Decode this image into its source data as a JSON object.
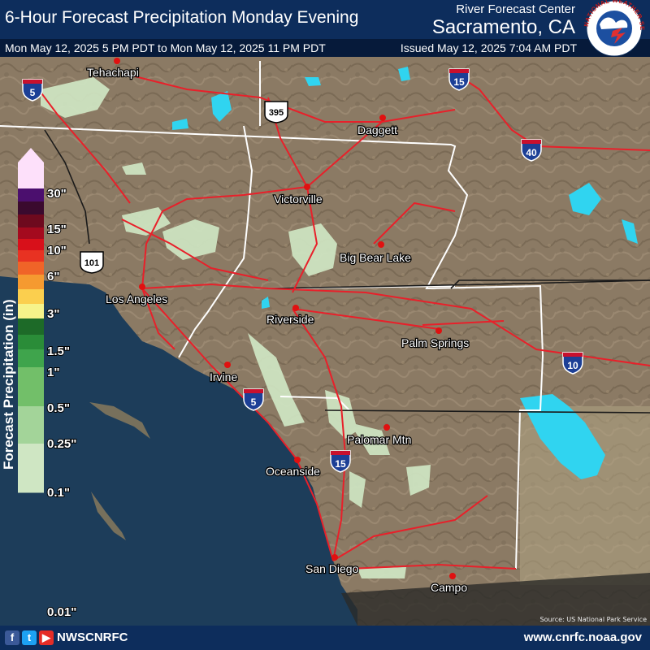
{
  "header": {
    "title": "6-Hour Forecast Precipitation Monday Evening",
    "rfc_label": "River Forecast Center",
    "rfc_city": "Sacramento, CA",
    "valid_time": "Mon May 12, 2025 5 PM PDT to Mon May 12, 2025 11 PM PDT",
    "issued_time": "Issued May 12, 2025 7:04 AM PDT",
    "logo_text": "NATIONAL WEATHER SERVICE"
  },
  "map": {
    "land_color": "#8c7b66",
    "water_color": "#1d3d5a",
    "lake_color": "#30d4f0",
    "road_color": "#e8202a",
    "light_precip_color": "#cfe6c3",
    "cities": [
      {
        "name": "Tehachapi"
      },
      {
        "name": "Daggett"
      },
      {
        "name": "Victorville"
      },
      {
        "name": "Big Bear Lake"
      },
      {
        "name": "Los Angeles"
      },
      {
        "name": "Riverside"
      },
      {
        "name": "Palm Springs"
      },
      {
        "name": "Irvine"
      },
      {
        "name": "Palomar Mtn"
      },
      {
        "name": "Oceanside"
      },
      {
        "name": "San Diego"
      },
      {
        "name": "Campo"
      }
    ],
    "shields": [
      {
        "type": "interstate",
        "number": "5"
      },
      {
        "type": "interstate",
        "number": "15"
      },
      {
        "type": "interstate",
        "number": "40"
      },
      {
        "type": "interstate",
        "number": "10"
      },
      {
        "type": "interstate",
        "number": "5"
      },
      {
        "type": "interstate",
        "number": "15"
      },
      {
        "type": "us",
        "number": "395"
      },
      {
        "type": "us",
        "number": "101"
      }
    ],
    "credit": "Source: US National Park Service"
  },
  "legend": {
    "title": "Forecast Precipitation (in)",
    "ticks": [
      "30\"",
      "15\"",
      "10\"",
      "6\"",
      "3\"",
      "1.5\"",
      "1\"",
      "0.5\"",
      "0.25\"",
      "0.1\"",
      "0.01\""
    ],
    "colors": [
      "#fde0fa",
      "#4b0f6e",
      "#3a0a2e",
      "#6e0a1e",
      "#a40a1e",
      "#d8101a",
      "#e83222",
      "#f06428",
      "#f59a30",
      "#fbcf4e",
      "#f6f38a",
      "#1d6a28",
      "#2a8c38",
      "#3fa44c",
      "#72bf69",
      "#a3d499",
      "#cfe6c3"
    ]
  },
  "footer": {
    "social_handle": "NWSCNRFC",
    "website": "www.cnrfc.noaa.gov",
    "social_icons": [
      "facebook-icon",
      "twitter-icon",
      "youtube-icon"
    ]
  }
}
